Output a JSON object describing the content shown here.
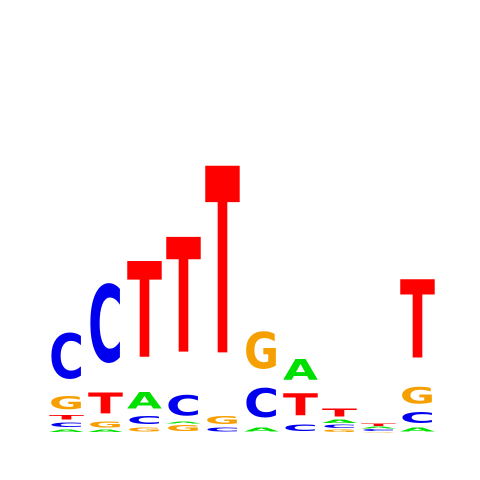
{
  "colors": {
    "A": "#00e000",
    "C": "#0000ee",
    "G": "#f5a000",
    "T": "#ff0000"
  },
  "logo": {
    "positions": [
      {
        "stack": [
          {
            "base": "A",
            "bits": 0.035
          },
          {
            "base": "C",
            "bits": 0.06
          },
          {
            "base": "T",
            "bits": 0.06
          },
          {
            "base": "G",
            "bits": 0.16
          },
          {
            "base": "C",
            "bits": 0.56
          }
        ]
      },
      {
        "stack": [
          {
            "base": "A",
            "bits": 0.03
          },
          {
            "base": "G",
            "bits": 0.07
          },
          {
            "base": "T",
            "bits": 0.26
          },
          {
            "base": "C",
            "bits": 0.96
          }
        ]
      },
      {
        "stack": [
          {
            "base": "G",
            "bits": 0.05
          },
          {
            "base": "C",
            "bits": 0.1
          },
          {
            "base": "A",
            "bits": 0.2
          },
          {
            "base": "T",
            "bits": 1.2
          }
        ]
      },
      {
        "stack": [
          {
            "base": "G",
            "bits": 0.07
          },
          {
            "base": "A",
            "bits": 0.02
          },
          {
            "base": "C",
            "bits": 0.25
          },
          {
            "base": "T",
            "bits": 1.44
          }
        ]
      },
      {
        "stack": [
          {
            "base": "C",
            "bits": 0.05
          },
          {
            "base": "G",
            "bits": 0.1
          },
          {
            "base": "T",
            "bits": 2.34
          }
        ]
      },
      {
        "stack": [
          {
            "base": "A",
            "bits": 0.05
          },
          {
            "base": "C",
            "bits": 0.36
          },
          {
            "base": "G",
            "bits": 0.46
          }
        ]
      },
      {
        "stack": [
          {
            "base": "C",
            "bits": 0.08
          },
          {
            "base": "T",
            "bits": 0.28
          },
          {
            "base": "A",
            "bits": 0.26
          }
        ]
      },
      {
        "stack": [
          {
            "base": "G",
            "bits": 0.03
          },
          {
            "base": "C",
            "bits": 0.04
          },
          {
            "base": "A",
            "bits": 0.04
          },
          {
            "base": "T",
            "bits": 0.1
          }
        ]
      },
      {
        "stack": [
          {
            "base": "G",
            "bits": 0.01
          },
          {
            "base": "C",
            "bits": 0.02
          },
          {
            "base": "A",
            "bits": 0.02
          },
          {
            "base": "T",
            "bits": 0.03
          }
        ]
      },
      {
        "stack": [
          {
            "base": "A",
            "bits": 0.05
          },
          {
            "base": "C",
            "bits": 0.14
          },
          {
            "base": "G",
            "bits": 0.2
          },
          {
            "base": "T",
            "bits": 0.98
          }
        ]
      }
    ]
  }
}
